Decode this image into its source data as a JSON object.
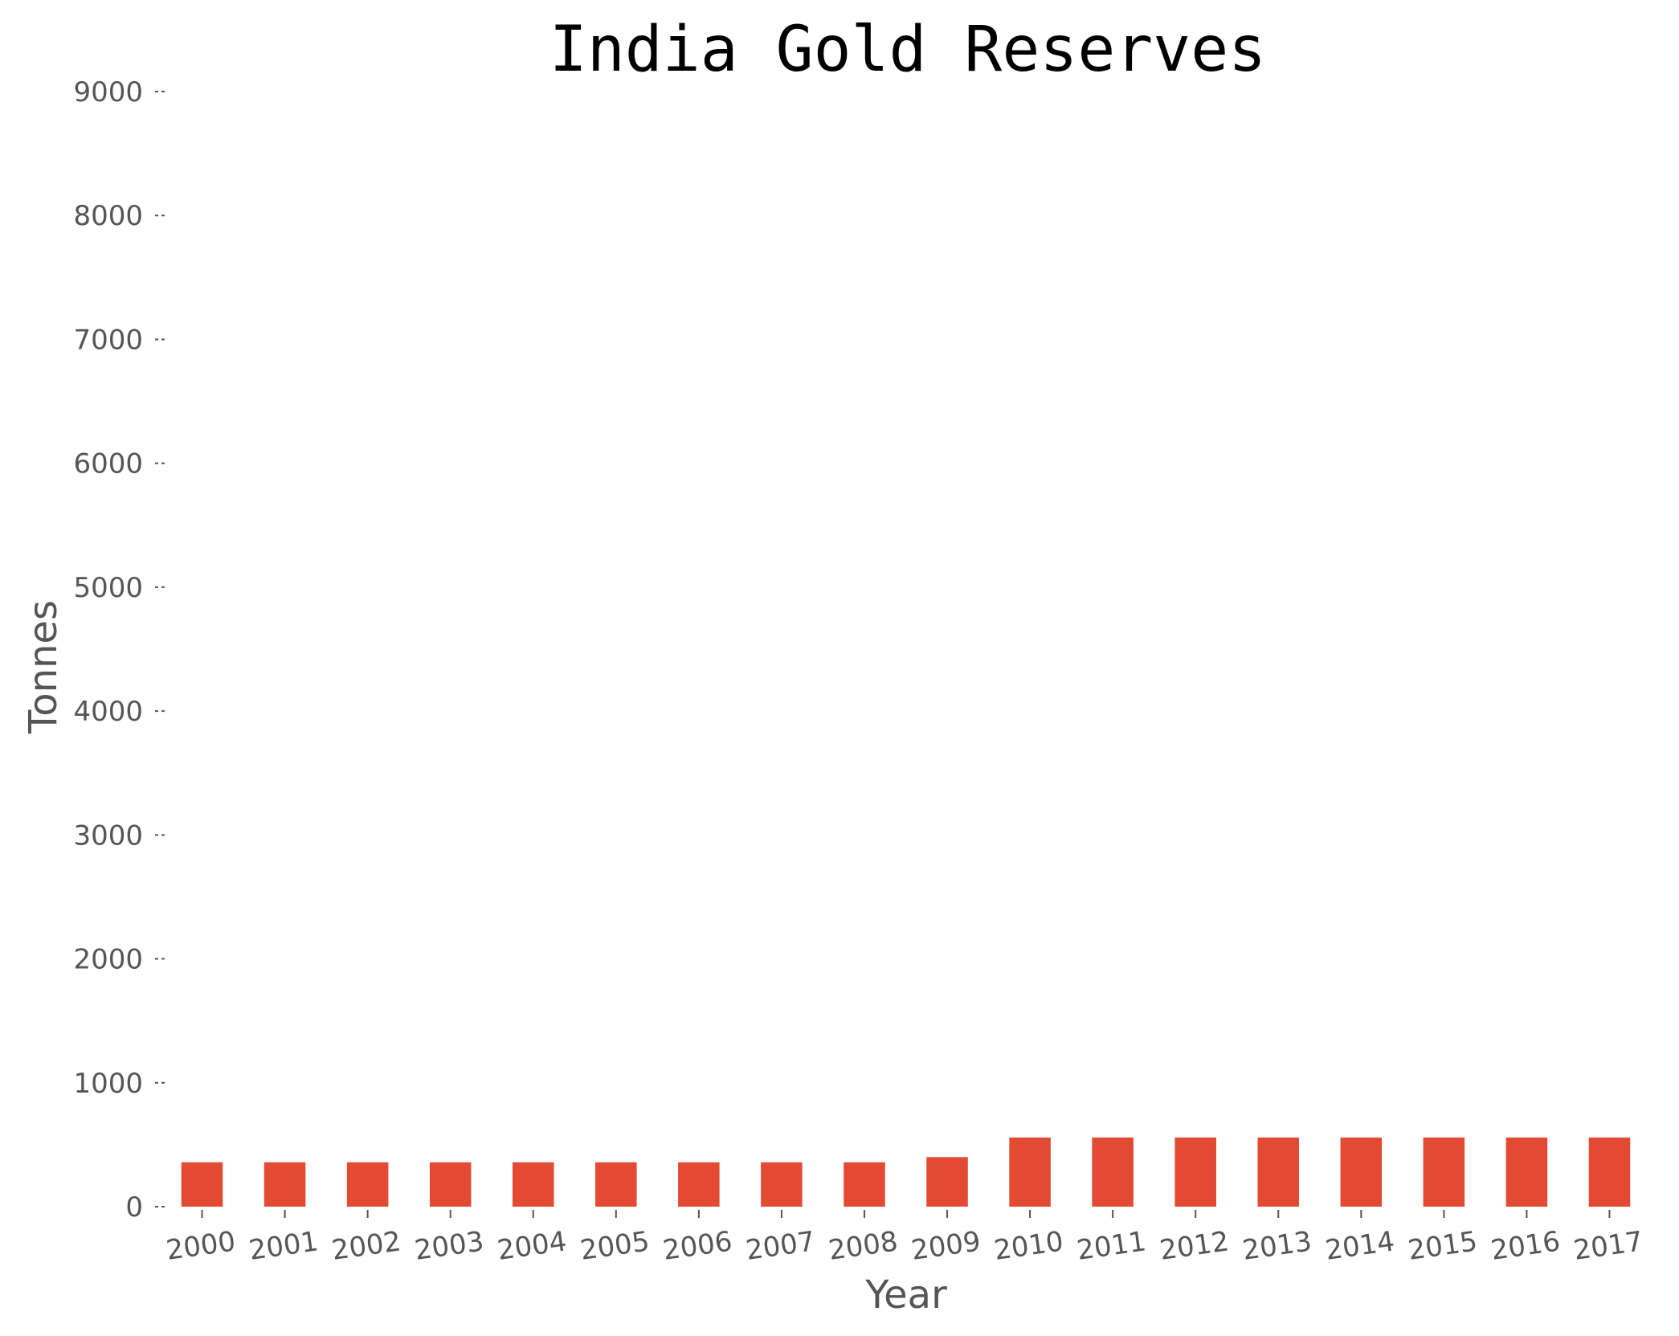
{
  "chart_data": {
    "type": "bar",
    "title": "India Gold Reserves",
    "xlabel": "Year",
    "ylabel": "Tonnes",
    "categories": [
      "2000",
      "2001",
      "2002",
      "2003",
      "2004",
      "2005",
      "2006",
      "2007",
      "2008",
      "2009",
      "2010",
      "2011",
      "2012",
      "2013",
      "2014",
      "2015",
      "2016",
      "2017"
    ],
    "values": [
      358,
      358,
      358,
      358,
      358,
      358,
      358,
      358,
      358,
      400,
      558,
      558,
      558,
      558,
      558,
      558,
      558,
      558
    ],
    "ylim": [
      0,
      9000
    ],
    "yticks": [
      0,
      1000,
      2000,
      3000,
      4000,
      5000,
      6000,
      7000,
      8000,
      9000
    ],
    "grid": false,
    "legend": "none",
    "bar_color": "#e34a33",
    "tick_color": "#555555"
  }
}
